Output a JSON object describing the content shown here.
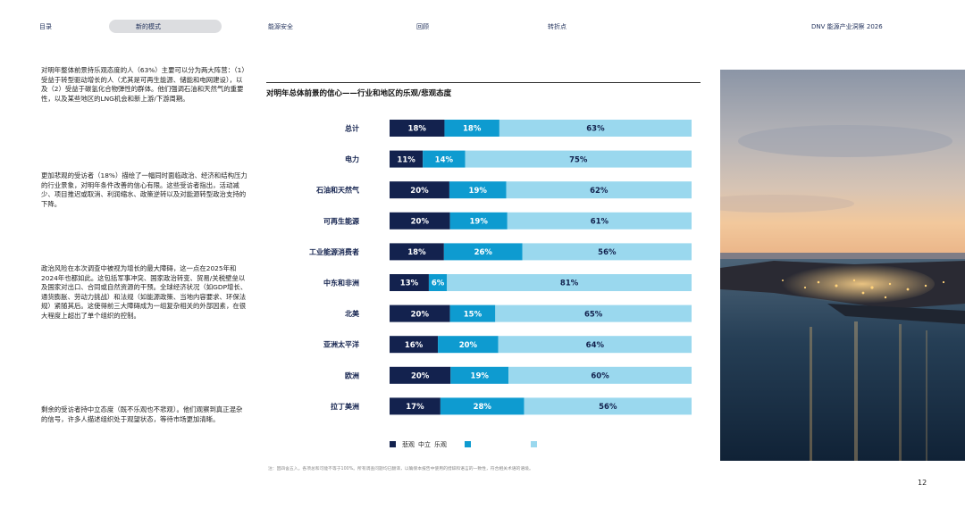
{
  "nav": {
    "items": [
      "目录",
      "能源安全",
      "回顾",
      "转折点"
    ],
    "active": "新的模式",
    "report": "DNV 能源产业洞察 2026"
  },
  "paragraphs": [
    "对明年整体前景持乐观态度的人（63%）主要可以分为两大阵营：（1）受益于转型驱动增长的人（尤其是可再生能源、储能和电网建设），以及（2）受益于碳氢化合物弹性的群体。他们强调石油和天然气的重要性，以及某些地区的LNG机会和新上游/下游周期。",
    "更加悲观的受访者（18%）描绘了一幅同时面临政治、经济和结构压力的行业景象，对明年条件改善的信心有限。这些受访者指出，活动减少、项目推迟或取消、利润缩水、政策逆转以及对能源转型政治支持的下降。",
    "政治风险在本次调查中被视为增长的最大障碍，这一点在2025年和2024年也都如此。这包括军事冲突、国家政治转变、贸易/关税壁垒以及国家对出口、合同或自然资源的干预。全球经济状况（如GDP增长、通货膨胀、劳动力挑战）和法规（如能源政策、当地内容要求、环保法规）紧随其后。这使得前三大障碍成为一组复杂相关的外部因素，在很大程度上超出了单个组织的控制。",
    "剩余的受访者持中立态度（既不乐观也不悲观）。他们观察到真正混杂的信号，许多人描述组织处于观望状态，等待市场更加清晰。"
  ],
  "chart_title": "对明年总体前景的信心——行业和地区的乐观/悲观态度",
  "colors": {
    "pessimistic": "#13224e",
    "neutral": "#0e9bd0",
    "optimistic": "#9ad8ee"
  },
  "chart_data": {
    "type": "bar",
    "orientation": "horizontal",
    "stacked": true,
    "categories": [
      "总计",
      "电力",
      "石油和天然气",
      "可再生能源",
      "工业能源消费者",
      "中东和非洲",
      "北美",
      "亚洲太平洋",
      "欧洲",
      "拉丁美洲"
    ],
    "series": [
      {
        "name": "悲观",
        "values": [
          18,
          11,
          20,
          20,
          18,
          13,
          20,
          16,
          20,
          17
        ]
      },
      {
        "name": "中立",
        "values": [
          18,
          14,
          19,
          19,
          26,
          6,
          15,
          20,
          19,
          28
        ]
      },
      {
        "name": "乐观",
        "values": [
          63,
          75,
          62,
          61,
          56,
          81,
          65,
          64,
          60,
          56
        ]
      }
    ],
    "value_suffix": "%",
    "legend_labels": [
      "悲观",
      "中立",
      "乐观"
    ],
    "legend_position": "bottom-left"
  },
  "footnote": "注：因四舍五入，各项总和可能不等于100%。所有调查问题均已翻译，以确保本报告中使用的措辞和语言的一致性，符合相关术语的语境。",
  "page_number": "12"
}
